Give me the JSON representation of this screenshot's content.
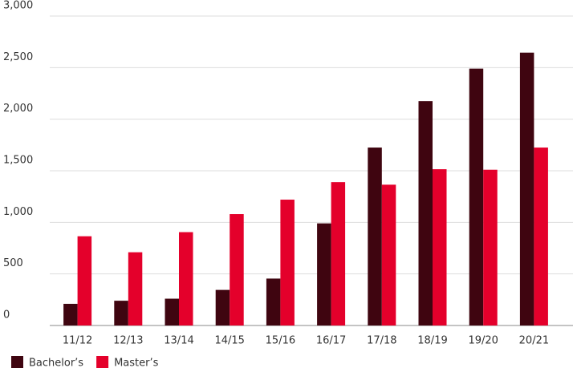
{
  "chart_data": {
    "type": "bar",
    "categories": [
      "11/12",
      "12/13",
      "13/14",
      "14/15",
      "15/16",
      "16/17",
      "17/18",
      "18/19",
      "19/20",
      "20/21"
    ],
    "series": [
      {
        "name": "Bachelor’s",
        "color": "#3f0510",
        "values": [
          210,
          240,
          260,
          345,
          455,
          990,
          1725,
          2175,
          2490,
          2645
        ]
      },
      {
        "name": "Master’s",
        "color": "#e4002b",
        "values": [
          865,
          710,
          905,
          1080,
          1220,
          1390,
          1365,
          1515,
          1510,
          1725
        ]
      }
    ],
    "ylim": [
      0,
      3000
    ],
    "yticks": [
      0,
      500,
      {
        "value": 1000,
        "label": "1,000"
      },
      {
        "value": 1500,
        "label": "1,500"
      },
      {
        "value": 2000,
        "label": "2,000"
      },
      {
        "value": 2500,
        "label": "2,500"
      },
      {
        "value": 3000,
        "label": "3,000"
      }
    ],
    "grid": true,
    "legend": "bottom-left"
  }
}
